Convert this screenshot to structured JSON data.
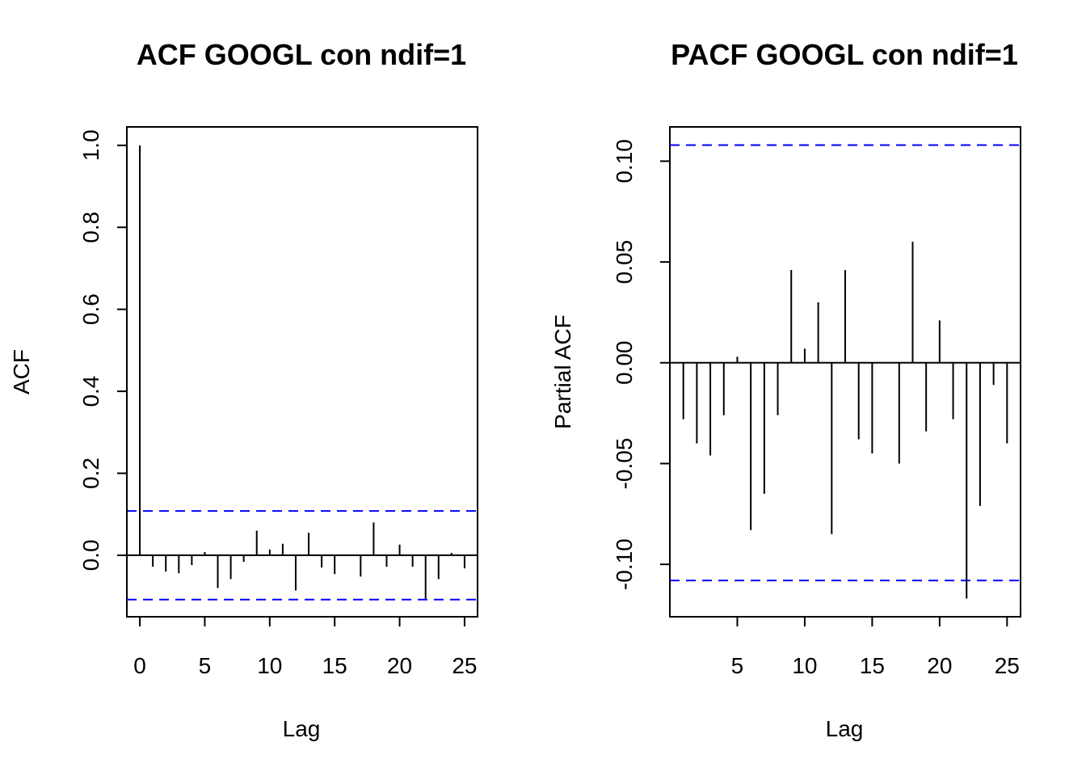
{
  "chart_data": [
    {
      "type": "bar",
      "title": "ACF  GOOGL  con ndif=1",
      "xlabel": "Lag",
      "ylabel": "ACF",
      "xlim": [
        -1,
        26
      ],
      "ylim": [
        -0.15,
        1.045
      ],
      "xticks": [
        0,
        5,
        10,
        15,
        20,
        25
      ],
      "yticks": [
        "0.0",
        "0.2",
        "0.4",
        "0.6",
        "0.8",
        "1.0"
      ],
      "confidence_bounds": [
        0.108,
        -0.108
      ],
      "bound_color": "#0000ff",
      "lags": [
        0,
        1,
        2,
        3,
        4,
        5,
        6,
        7,
        8,
        9,
        10,
        11,
        12,
        13,
        14,
        15,
        16,
        17,
        18,
        19,
        20,
        21,
        22,
        23,
        24,
        25
      ],
      "values": [
        1.0,
        -0.028,
        -0.04,
        -0.044,
        -0.024,
        0.008,
        -0.08,
        -0.058,
        -0.016,
        0.06,
        0.014,
        0.028,
        -0.086,
        0.055,
        -0.03,
        -0.046,
        -0.002,
        -0.052,
        0.08,
        -0.028,
        0.026,
        -0.028,
        -0.106,
        -0.058,
        0.006,
        -0.032
      ]
    },
    {
      "type": "bar",
      "title": "PACF  GOOGL  con ndif=1",
      "xlabel": "Lag",
      "ylabel": "Partial ACF",
      "xlim": [
        0,
        26
      ],
      "ylim": [
        -0.126,
        0.117
      ],
      "xticks": [
        5,
        10,
        15,
        20,
        25
      ],
      "yticks": [
        "-0.10",
        "-0.05",
        "0.00",
        "0.05",
        "0.10"
      ],
      "confidence_bounds": [
        0.108,
        -0.108
      ],
      "bound_color": "#0000ff",
      "lags": [
        1,
        2,
        3,
        4,
        5,
        6,
        7,
        8,
        9,
        10,
        11,
        12,
        13,
        14,
        15,
        16,
        17,
        18,
        19,
        20,
        21,
        22,
        23,
        24,
        25
      ],
      "values": [
        -0.028,
        -0.04,
        -0.046,
        -0.026,
        0.003,
        -0.083,
        -0.065,
        -0.026,
        0.046,
        0.007,
        0.03,
        -0.085,
        0.046,
        -0.038,
        -0.045,
        0.0,
        -0.05,
        0.06,
        -0.034,
        0.021,
        -0.028,
        -0.117,
        -0.071,
        -0.011,
        -0.04
      ]
    }
  ]
}
